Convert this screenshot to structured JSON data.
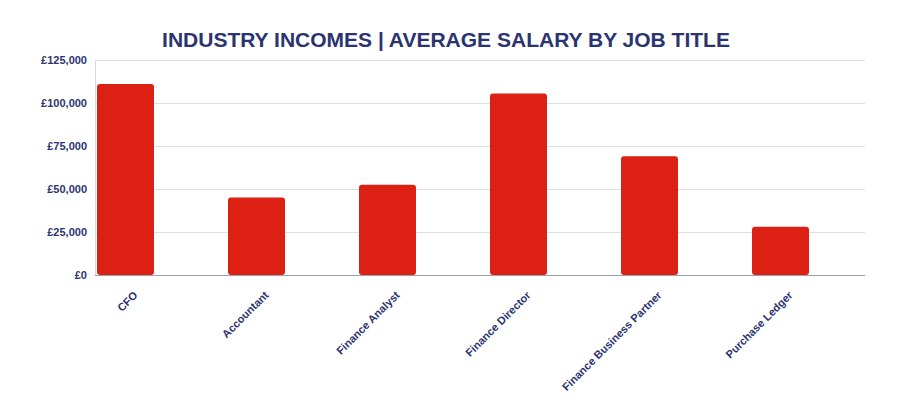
{
  "chart_data": {
    "type": "bar",
    "title": "INDUSTRY INCOMES | AVERAGE SALARY BY JOB TITLE",
    "categories": [
      "CFO",
      "Accountant",
      "Finance Analyst",
      "Finance Director",
      "Finance Business Partner",
      "Purchase Ledger"
    ],
    "values": [
      111000,
      45000,
      52500,
      105500,
      69000,
      28000
    ],
    "color": "#dc2014",
    "ylim": [
      0,
      125000
    ],
    "yticks": [
      {
        "value": 0,
        "label": "£0"
      },
      {
        "value": 25000,
        "label": "£25,000"
      },
      {
        "value": 50000,
        "label": "£50,000"
      },
      {
        "value": 75000,
        "label": "£75,000"
      },
      {
        "value": 100000,
        "label": "£100,000"
      },
      {
        "value": 125000,
        "label": "£125,000"
      }
    ],
    "grid": true
  }
}
